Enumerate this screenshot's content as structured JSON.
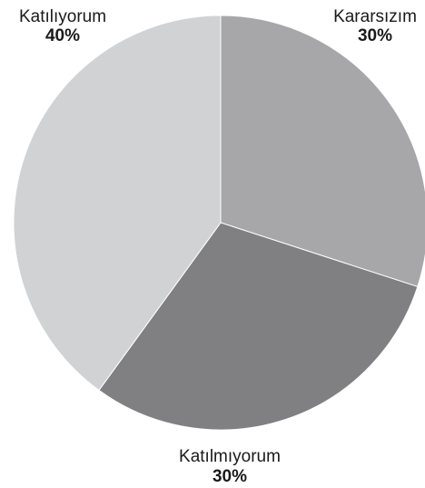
{
  "chart_data": {
    "type": "pie",
    "start_angle_deg": 0,
    "direction": "clockwise",
    "slices": [
      {
        "label": "Kararsızım",
        "value": 30,
        "value_label": "30%",
        "color": "#a7a7aa"
      },
      {
        "label": "Katılmıyorum",
        "value": 30,
        "value_label": "30%",
        "color": "#808083"
      },
      {
        "label": "Katılıyorum",
        "value": 40,
        "value_label": "40%",
        "color": "#d1d2d4"
      }
    ]
  }
}
